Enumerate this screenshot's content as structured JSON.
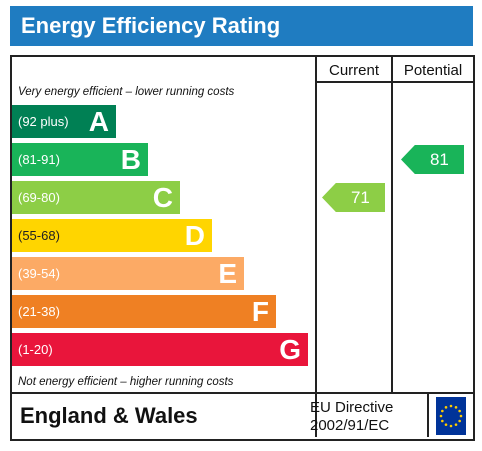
{
  "header": {
    "title": "Energy Efficiency Rating"
  },
  "columns": {
    "current": "Current",
    "potential": "Potential"
  },
  "notes": {
    "top": "Very energy efficient – lower running costs",
    "bottom": "Not energy efficient – higher running costs"
  },
  "bands": [
    {
      "range": "(92 plus)",
      "letter": "A",
      "color": "#008054"
    },
    {
      "range": "(81-91)",
      "letter": "B",
      "color": "#19b459"
    },
    {
      "range": "(69-80)",
      "letter": "C",
      "color": "#8dce46"
    },
    {
      "range": "(55-68)",
      "letter": "D",
      "color": "#ffd500"
    },
    {
      "range": "(39-54)",
      "letter": "E",
      "color": "#fcaa65"
    },
    {
      "range": "(21-38)",
      "letter": "F",
      "color": "#ef8023"
    },
    {
      "range": "(1-20)",
      "letter": "G",
      "color": "#e9153b"
    }
  ],
  "ratings": {
    "current": {
      "value": "71",
      "band": "C",
      "color": "#8dce46"
    },
    "potential": {
      "value": "81",
      "band": "B",
      "color": "#19b459"
    }
  },
  "footer": {
    "country": "England & Wales",
    "directive_line1": "EU Directive",
    "directive_line2": "2002/91/EC",
    "flag": {
      "icon": "eu-flag-icon",
      "background": "#003399",
      "stars": "#ffcc00"
    }
  }
}
